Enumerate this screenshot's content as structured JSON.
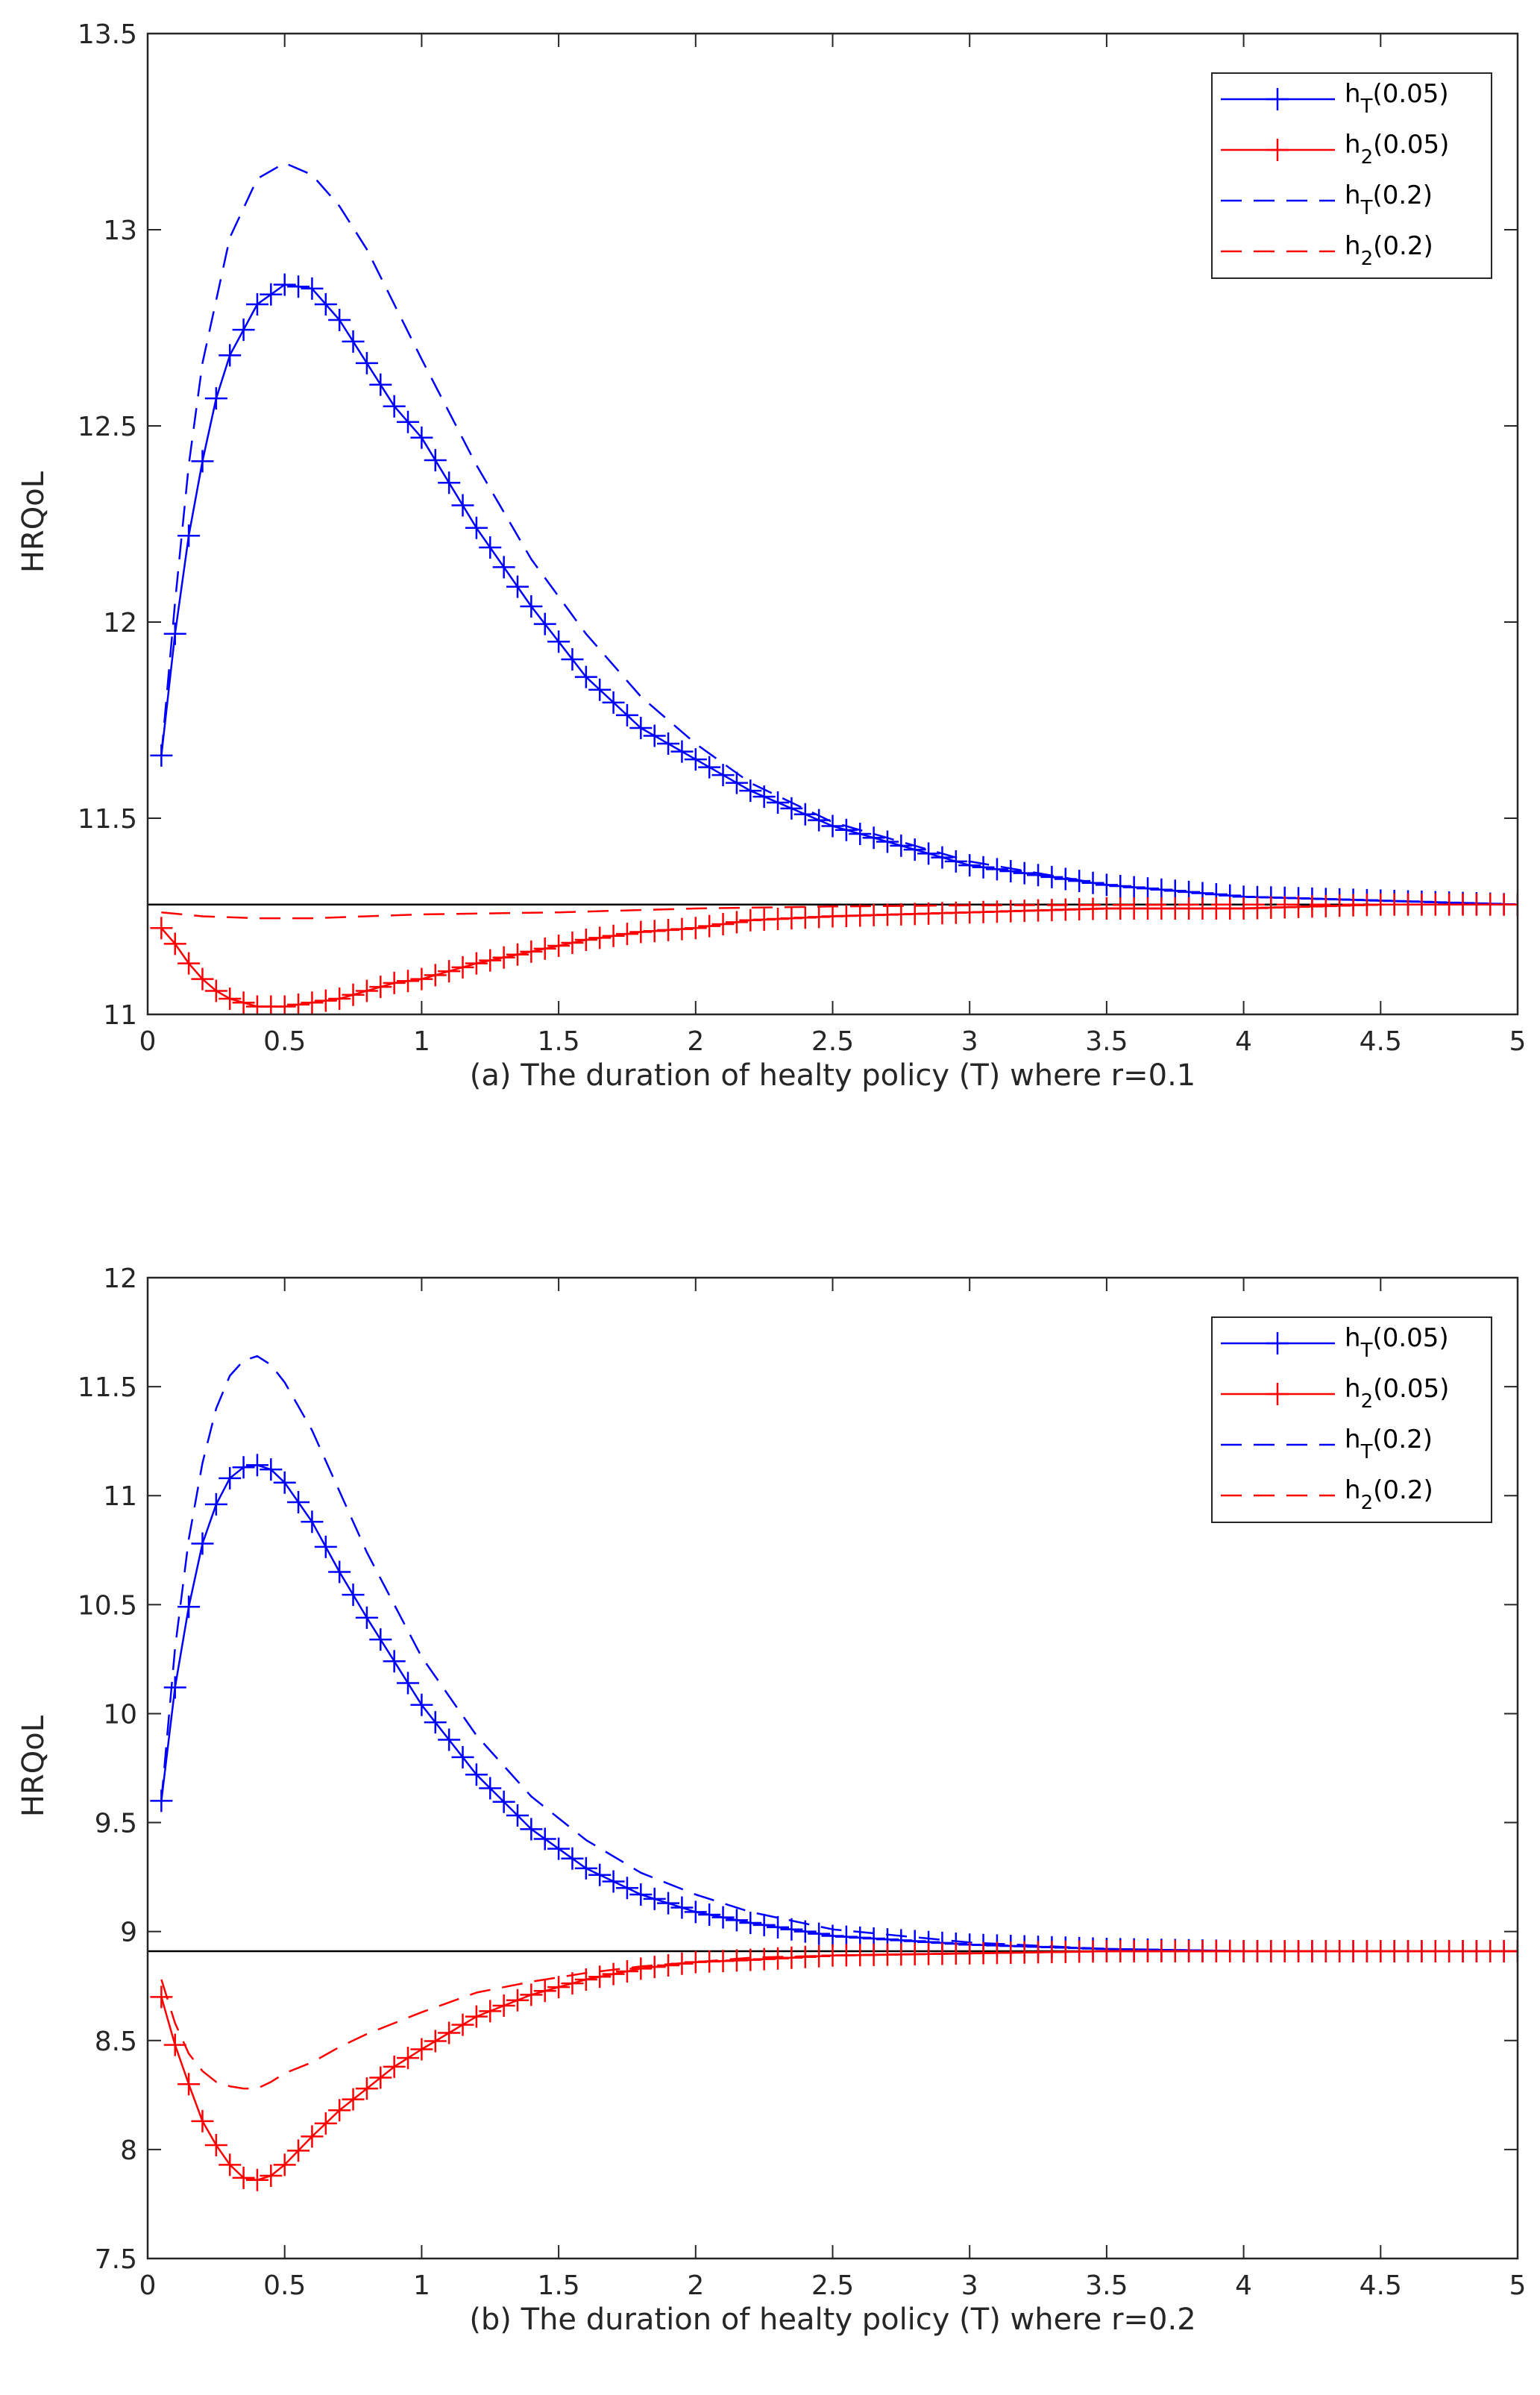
{
  "figure": {
    "description_labels": [
      "(a)",
      "(b)"
    ]
  },
  "colors": {
    "blue": "#0000ff",
    "red": "#ff0000",
    "black": "#000000"
  },
  "chart_data": [
    {
      "type": "line",
      "panel": "a",
      "xlabel": "(a) The duration of healty policy (T) where r=0.1",
      "ylabel": "HRQoL",
      "xlim": [
        0,
        5
      ],
      "ylim": [
        11,
        13.5
      ],
      "xticks": [
        "0",
        "0.5",
        "1",
        "1.5",
        "2",
        "2.5",
        "3",
        "3.5",
        "4",
        "4.5",
        "5"
      ],
      "yticks": [
        "11",
        "11.5",
        "12",
        "12.5",
        "13",
        "13.5"
      ],
      "reference_line": {
        "y": 11.28,
        "color": "#000000"
      },
      "legend": {
        "position": "top-right",
        "entries": [
          {
            "base": "h",
            "sub": "T",
            "arg": "(0.05)",
            "color": "#0000ff",
            "style": "solid-plus"
          },
          {
            "base": "h",
            "sub": "2",
            "arg": "(0.05)",
            "color": "#ff0000",
            "style": "solid-plus"
          },
          {
            "base": "h",
            "sub": "T",
            "arg": "(0.2)",
            "color": "#0000ff",
            "style": "dashed"
          },
          {
            "base": "h",
            "sub": "2",
            "arg": "(0.2)",
            "color": "#ff0000",
            "style": "dashed"
          }
        ]
      },
      "series": [
        {
          "name": "hT(0.05)",
          "color": "#0000ff",
          "style": "solid-plus",
          "x": [
            0.05,
            0.1,
            0.15,
            0.2,
            0.25,
            0.3,
            0.4,
            0.5,
            0.6,
            0.7,
            0.8,
            0.9,
            1.0,
            1.2,
            1.4,
            1.6,
            1.8,
            2.0,
            2.2,
            2.5,
            3.0,
            3.5,
            4.0,
            4.5,
            5.0
          ],
          "values": [
            11.66,
            11.97,
            12.22,
            12.41,
            12.57,
            12.68,
            12.81,
            12.86,
            12.85,
            12.77,
            12.66,
            12.55,
            12.47,
            12.24,
            12.04,
            11.86,
            11.73,
            11.65,
            11.57,
            11.48,
            11.38,
            11.33,
            11.3,
            11.29,
            11.28
          ]
        },
        {
          "name": "h2(0.05)",
          "color": "#ff0000",
          "style": "solid-plus",
          "x": [
            0.05,
            0.1,
            0.15,
            0.2,
            0.25,
            0.3,
            0.4,
            0.5,
            0.6,
            0.7,
            0.8,
            0.9,
            1.0,
            1.2,
            1.4,
            1.6,
            1.8,
            2.0,
            2.2,
            2.5,
            3.0,
            3.5,
            4.0,
            4.5,
            5.0
          ],
          "values": [
            11.22,
            11.18,
            11.13,
            11.09,
            11.06,
            11.04,
            11.02,
            11.02,
            11.03,
            11.04,
            11.06,
            11.08,
            11.09,
            11.13,
            11.16,
            11.19,
            11.21,
            11.22,
            11.24,
            11.25,
            11.26,
            11.27,
            11.27,
            11.28,
            11.28
          ]
        },
        {
          "name": "hT(0.2)",
          "color": "#0000ff",
          "style": "dashed",
          "x": [
            0.05,
            0.1,
            0.15,
            0.2,
            0.3,
            0.4,
            0.5,
            0.6,
            0.7,
            0.8,
            1.0,
            1.2,
            1.4,
            1.6,
            1.8,
            2.0,
            2.2,
            2.5,
            3.0,
            3.5,
            4.0,
            4.5,
            5.0
          ],
          "values": [
            11.66,
            12.05,
            12.4,
            12.66,
            12.98,
            13.13,
            13.17,
            13.14,
            13.06,
            12.95,
            12.67,
            12.4,
            12.16,
            11.97,
            11.81,
            11.69,
            11.59,
            11.49,
            11.39,
            11.33,
            11.3,
            11.29,
            11.28
          ]
        },
        {
          "name": "h2(0.2)",
          "color": "#ff0000",
          "style": "dashed",
          "x": [
            0.05,
            0.2,
            0.4,
            0.6,
            0.8,
            1.0,
            1.5,
            2.0,
            2.5,
            3.0,
            4.0,
            5.0
          ],
          "values": [
            11.26,
            11.25,
            11.245,
            11.245,
            11.25,
            11.255,
            11.26,
            11.27,
            11.275,
            11.278,
            11.28,
            11.28
          ]
        }
      ]
    },
    {
      "type": "line",
      "panel": "b",
      "xlabel": "(b) The duration of healty policy (T) where r=0.2",
      "ylabel": "HRQoL",
      "xlim": [
        0,
        5
      ],
      "ylim": [
        7.5,
        12
      ],
      "xticks": [
        "0",
        "0.5",
        "1",
        "1.5",
        "2",
        "2.5",
        "3",
        "3.5",
        "4",
        "4.5",
        "5"
      ],
      "yticks": [
        "7.5",
        "8",
        "8.5",
        "9",
        "9.5",
        "10",
        "10.5",
        "11",
        "11.5",
        "12"
      ],
      "reference_line": {
        "y": 8.91,
        "color": "#000000"
      },
      "legend": {
        "position": "top-right",
        "entries": [
          {
            "base": "h",
            "sub": "T",
            "arg": "(0.05)",
            "color": "#0000ff",
            "style": "solid-plus"
          },
          {
            "base": "h",
            "sub": "2",
            "arg": "(0.05)",
            "color": "#ff0000",
            "style": "solid-plus"
          },
          {
            "base": "h",
            "sub": "T",
            "arg": "(0.2)",
            "color": "#0000ff",
            "style": "dashed"
          },
          {
            "base": "h",
            "sub": "2",
            "arg": "(0.2)",
            "color": "#ff0000",
            "style": "dashed"
          }
        ]
      },
      "series": [
        {
          "name": "hT(0.05)",
          "color": "#0000ff",
          "style": "solid-plus",
          "x": [
            0.05,
            0.1,
            0.15,
            0.2,
            0.25,
            0.3,
            0.35,
            0.4,
            0.45,
            0.5,
            0.6,
            0.7,
            0.8,
            0.9,
            1.0,
            1.2,
            1.4,
            1.6,
            1.8,
            2.0,
            2.2,
            2.5,
            3.0,
            3.5,
            4.0,
            4.5,
            5.0
          ],
          "values": [
            9.6,
            10.12,
            10.49,
            10.78,
            10.96,
            11.08,
            11.13,
            11.14,
            11.12,
            11.06,
            10.88,
            10.65,
            10.44,
            10.24,
            10.04,
            9.72,
            9.47,
            9.29,
            9.17,
            9.09,
            9.04,
            8.98,
            8.94,
            8.92,
            8.91,
            8.91,
            8.91
          ]
        },
        {
          "name": "h2(0.05)",
          "color": "#ff0000",
          "style": "solid-plus",
          "x": [
            0.05,
            0.1,
            0.15,
            0.2,
            0.25,
            0.3,
            0.35,
            0.4,
            0.45,
            0.5,
            0.6,
            0.7,
            0.8,
            0.9,
            1.0,
            1.2,
            1.4,
            1.6,
            1.8,
            2.0,
            2.2,
            2.5,
            3.0,
            3.5,
            4.0,
            4.5,
            5.0
          ],
          "values": [
            8.7,
            8.48,
            8.3,
            8.13,
            8.02,
            7.93,
            7.87,
            7.86,
            7.88,
            7.93,
            8.06,
            8.18,
            8.28,
            8.38,
            8.46,
            8.61,
            8.71,
            8.78,
            8.83,
            8.86,
            8.87,
            8.89,
            8.9,
            8.91,
            8.91,
            8.91,
            8.91
          ]
        },
        {
          "name": "hT(0.2)",
          "color": "#0000ff",
          "style": "dashed",
          "x": [
            0.05,
            0.1,
            0.15,
            0.2,
            0.25,
            0.3,
            0.35,
            0.4,
            0.45,
            0.5,
            0.6,
            0.7,
            0.8,
            1.0,
            1.2,
            1.4,
            1.6,
            1.8,
            2.0,
            2.2,
            2.5,
            3.0,
            3.5,
            4.0,
            4.5,
            5.0
          ],
          "values": [
            9.6,
            10.3,
            10.8,
            11.15,
            11.4,
            11.55,
            11.62,
            11.64,
            11.6,
            11.52,
            11.3,
            11.02,
            10.74,
            10.26,
            9.9,
            9.62,
            9.42,
            9.27,
            9.17,
            9.09,
            9.01,
            8.95,
            8.92,
            8.91,
            8.91,
            8.91
          ]
        },
        {
          "name": "h2(0.2)",
          "color": "#ff0000",
          "style": "dashed",
          "x": [
            0.05,
            0.1,
            0.15,
            0.2,
            0.25,
            0.3,
            0.35,
            0.4,
            0.45,
            0.5,
            0.6,
            0.7,
            0.8,
            1.0,
            1.2,
            1.4,
            1.6,
            1.8,
            2.0,
            2.2,
            2.5,
            3.0,
            3.5,
            4.0,
            4.5,
            5.0
          ],
          "values": [
            8.78,
            8.58,
            8.44,
            8.36,
            8.31,
            8.29,
            8.28,
            8.28,
            8.31,
            8.35,
            8.4,
            8.47,
            8.53,
            8.63,
            8.72,
            8.77,
            8.81,
            8.84,
            8.86,
            8.88,
            8.89,
            8.9,
            8.91,
            8.91,
            8.91,
            8.91
          ]
        }
      ]
    }
  ]
}
